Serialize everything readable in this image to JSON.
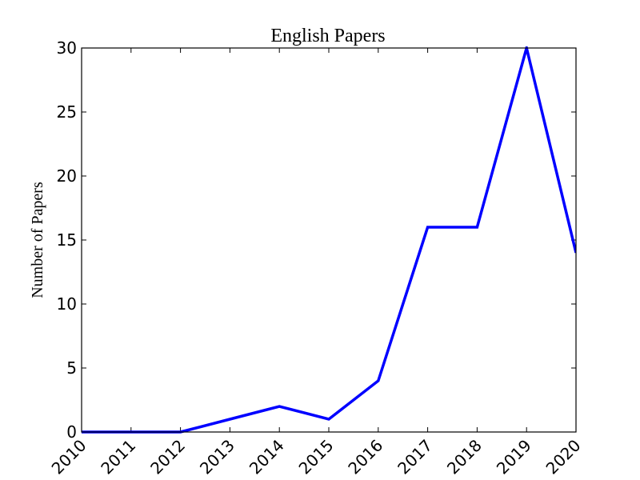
{
  "chart_data": {
    "type": "line",
    "title": "English Papers",
    "xlabel": "",
    "ylabel": "Number of Papers",
    "x": [
      2010,
      2011,
      2012,
      2013,
      2014,
      2015,
      2016,
      2017,
      2018,
      2019,
      2020
    ],
    "series": [
      {
        "values": [
          0,
          0,
          0,
          1,
          2,
          1,
          4,
          16,
          16,
          30,
          14
        ],
        "color": "#0000ff"
      }
    ],
    "xlim": [
      2010,
      2020
    ],
    "ylim": [
      0,
      30
    ],
    "xticks": [
      "2010",
      "2011",
      "2012",
      "2013",
      "2014",
      "2015",
      "2016",
      "2017",
      "2018",
      "2019",
      "2020"
    ],
    "yticks": [
      "0",
      "5",
      "10",
      "15",
      "20",
      "25",
      "30"
    ],
    "grid": false
  }
}
